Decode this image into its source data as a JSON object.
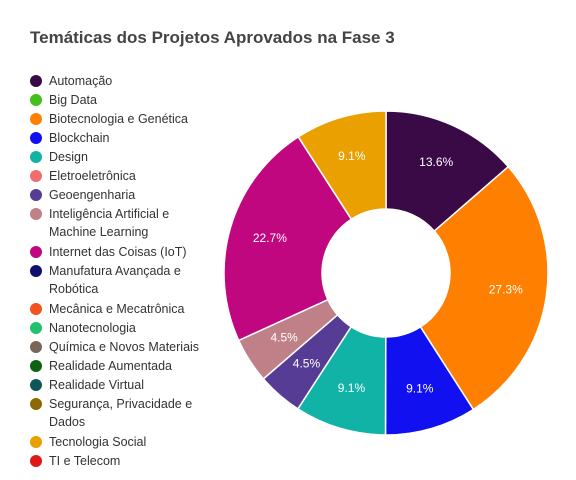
{
  "chart_data": {
    "type": "pie",
    "title": "Temáticas dos Projetos Aprovados na Fase 3",
    "legend_position": "left",
    "hole": true,
    "slices": [
      {
        "label": "Automação",
        "value": 13.6,
        "color": "#3a0a47",
        "display": "13.6%"
      },
      {
        "label": "Biotecnologia e Genética",
        "value": 27.3,
        "color": "#ff7f00",
        "display": "27.3%"
      },
      {
        "label": "Blockchain",
        "value": 9.1,
        "color": "#1010f0",
        "display": "9.1%"
      },
      {
        "label": "Design",
        "value": 9.1,
        "color": "#11b3a6",
        "display": "9.1%"
      },
      {
        "label": "Geoengenharia",
        "value": 4.5,
        "color": "#573c96",
        "display": "4.5%"
      },
      {
        "label": "Inteligência Artificial e Machine Learning",
        "value": 4.5,
        "color": "#c08088",
        "display": "4.5%"
      },
      {
        "label": "Internet das Coisas (IoT)",
        "value": 22.7,
        "color": "#c0077f",
        "display": "22.7%"
      },
      {
        "label": "Tecnologia Social",
        "value": 9.1,
        "color": "#eaa000",
        "display": "9.1%"
      }
    ],
    "legend": [
      {
        "label": "Automação",
        "color": "#3a0a47"
      },
      {
        "label": "Big Data",
        "color": "#45c01a"
      },
      {
        "label": "Biotecnologia e Genética",
        "color": "#ff7f00"
      },
      {
        "label": "Blockchain",
        "color": "#1010f0"
      },
      {
        "label": "Design",
        "color": "#11b3a6"
      },
      {
        "label": "Eletroeletrônica",
        "color": "#f26d6d"
      },
      {
        "label": "Geoengenharia",
        "color": "#573c96"
      },
      {
        "label": "Inteligência Artificial e Machine Learning",
        "color": "#c08088"
      },
      {
        "label": "Internet das Coisas (IoT)",
        "color": "#c0077f"
      },
      {
        "label": "Manufatura Avançada e Robótica",
        "color": "#10106e"
      },
      {
        "label": "Mecânica e Mecatrônica",
        "color": "#f0541e"
      },
      {
        "label": "Nanotecnologia",
        "color": "#21c26d"
      },
      {
        "label": "Química e Novos Materiais",
        "color": "#7a6657"
      },
      {
        "label": "Realidade Aumentada",
        "color": "#0c6412"
      },
      {
        "label": "Realidade Virtual",
        "color": "#0f5656"
      },
      {
        "label": "Segurança, Privacidade e Dados",
        "color": "#8a6a00"
      },
      {
        "label": "Tecnologia Social",
        "color": "#eaa000"
      },
      {
        "label": "TI e Telecom",
        "color": "#e01818"
      }
    ]
  }
}
